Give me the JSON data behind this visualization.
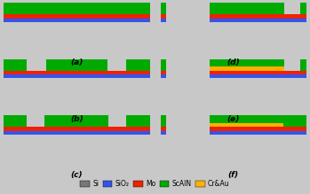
{
  "Si": "#787878",
  "SiO2": "#3355EE",
  "Mo": "#EE2200",
  "ScAlN": "#00AA00",
  "CrAu": "#FFB000",
  "bg": "#C8C8C8",
  "panels": [
    "(a)",
    "(b)",
    "(c)",
    "(d)",
    "(e)",
    "(f)"
  ]
}
